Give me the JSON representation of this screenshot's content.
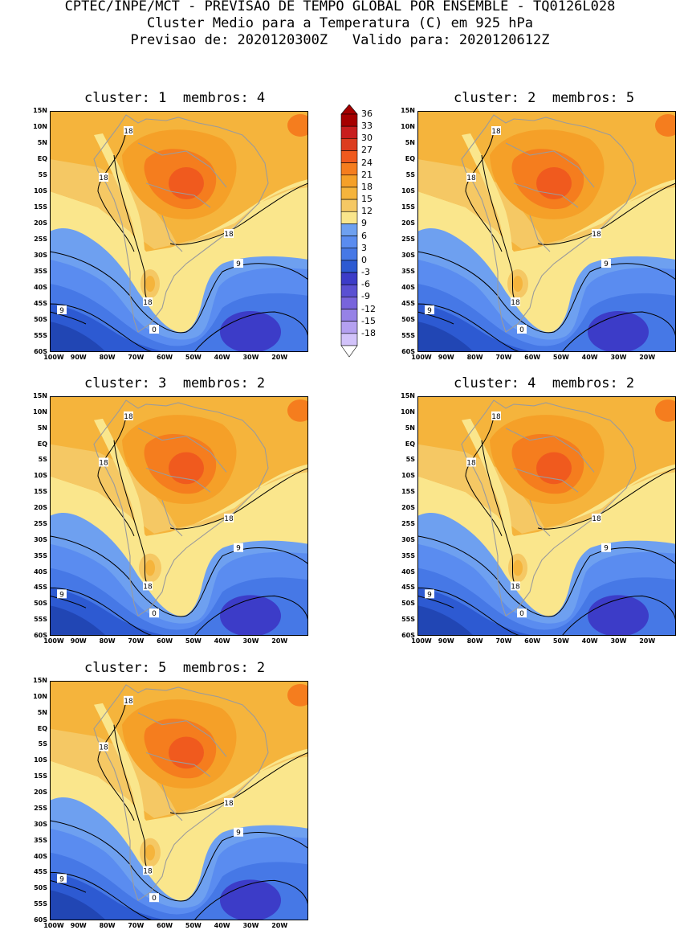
{
  "header": {
    "line1": "CPTEC/INPE/MCT - PREVISAO DE TEMPO GLOBAL POR ENSEMBLE - TQ0126L028",
    "line2": "Cluster Medio para a Temperatura (C) em 925 hPa",
    "line3": "Previsao de: 2020120300Z   Valido para: 2020120612Z"
  },
  "panels": [
    {
      "title": "cluster: 1  membros: 4"
    },
    {
      "title": "cluster: 2  membros: 5"
    },
    {
      "title": "cluster: 3  membros: 2"
    },
    {
      "title": "cluster: 4  membros: 2"
    },
    {
      "title": "cluster: 5  membros: 2"
    }
  ],
  "map": {
    "lat_labels": [
      "15N",
      "10N",
      "5N",
      "EQ",
      "5S",
      "10S",
      "15S",
      "20S",
      "25S",
      "30S",
      "35S",
      "40S",
      "45S",
      "50S",
      "55S",
      "60S"
    ],
    "lon_labels": [
      "100W",
      "90W",
      "80W",
      "70W",
      "60W",
      "50W",
      "40W",
      "30W",
      "20W"
    ],
    "contour_labels": [
      "18",
      "18",
      "18",
      "9",
      "18",
      "9",
      "0"
    ]
  },
  "colorbar": {
    "levels": [
      "36",
      "33",
      "30",
      "27",
      "24",
      "21",
      "18",
      "15",
      "12",
      "9",
      "6",
      "3",
      "0",
      "-3",
      "-6",
      "-9",
      "-12",
      "-15",
      "-18"
    ],
    "colors": [
      "#a50000",
      "#c81e1e",
      "#dc3c1e",
      "#f05a1e",
      "#f57d1e",
      "#f5a028",
      "#f5b43c",
      "#f5c864",
      "#fae68c",
      "#6ea0f0",
      "#5a8cf0",
      "#4678e6",
      "#2d5ad2",
      "#3c3cc8",
      "#5a50d2",
      "#7864dc",
      "#9682e6",
      "#b4a0f0",
      "#d2c3fa"
    ]
  },
  "colors": {
    "land_line": "#9b9b9b",
    "contour": "#000000"
  }
}
